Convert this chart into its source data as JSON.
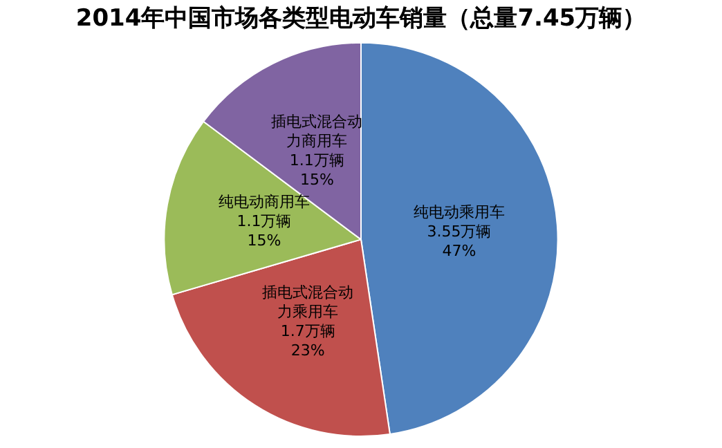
{
  "chart_data": {
    "type": "pie",
    "title": "2014年中国市场各类型电动车销量（总量7.45万辆）",
    "categories": [
      "纯电动乘用车",
      "插电式混合动力乘用车",
      "纯电动商用车",
      "插电式混合动力商用车"
    ],
    "values": [
      3.55,
      1.7,
      1.1,
      1.1
    ],
    "value_labels": [
      "3.55万辆\n47%",
      "1.7万辆\n23%",
      "1.1万辆\n15%",
      "1.1万辆\n15%"
    ],
    "colors": [
      "#4f81bd",
      "#c0504d",
      "#9bbb59",
      "#8064a2"
    ],
    "legend": false
  }
}
